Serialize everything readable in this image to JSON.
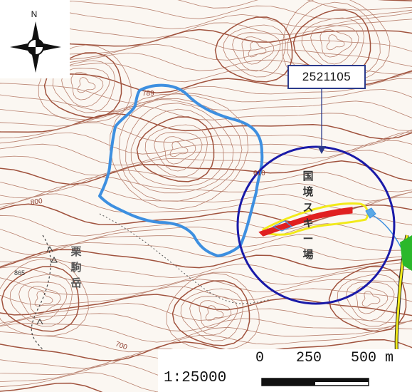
{
  "map": {
    "id_label": "2521105",
    "scale_ratio": "1:25000",
    "scale_ticks": [
      "0",
      "250",
      "500 m"
    ],
    "compass_north": "N",
    "place_names": {
      "ski_area": [
        "国",
        "境",
        "ス",
        "キ",
        "ー",
        "場"
      ],
      "mountain": [
        "栗",
        "駒",
        "岳"
      ]
    },
    "elevations": {
      "e789": "789",
      "e800": "800",
      "e700": "700",
      "e865": "865",
      "e610": "610"
    },
    "colors": {
      "contour": "#b8806e",
      "contour_index": "#a0523d",
      "watershed_outline": "#3d8fe0",
      "focus_circle": "#1a1aa8",
      "slide_zone_fill": "#e02020",
      "slide_zone_outline": "#f2ea1a",
      "road": "#f2ea1a",
      "forest_patch": "#2bb82b",
      "label_border": "#2b3a8c"
    }
  }
}
